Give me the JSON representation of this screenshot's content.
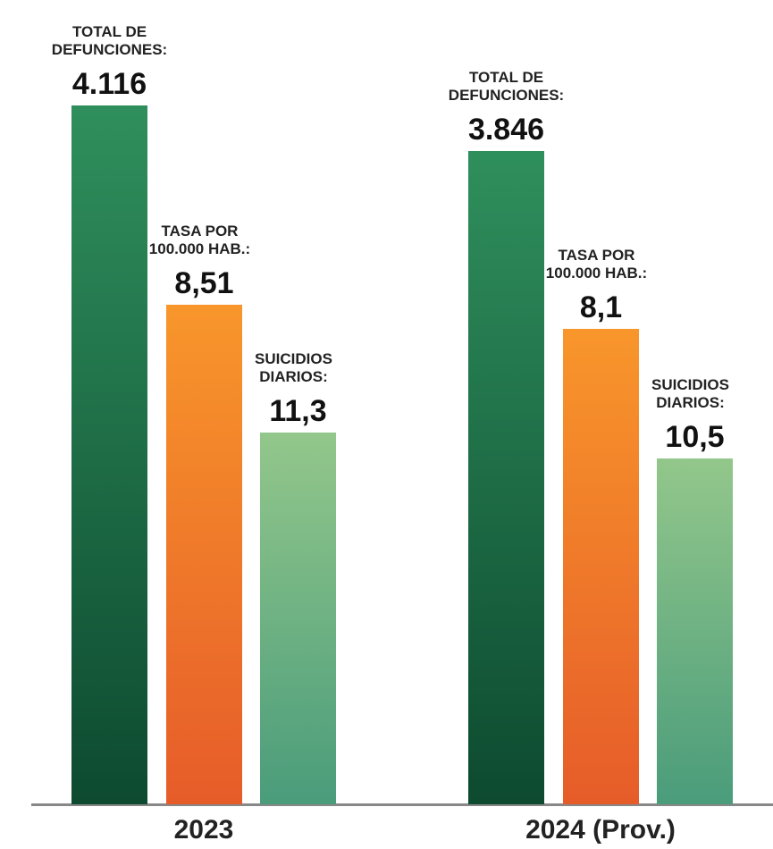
{
  "chart_data": {
    "type": "bar",
    "categories": [
      "2023",
      "2024 (Prov.)"
    ],
    "series": [
      {
        "name": "TOTAL DE DEFUNCIONES:",
        "color": "#1f7a4c",
        "values": [
          4116,
          3846
        ],
        "value_labels": [
          "4.116",
          "3.846"
        ]
      },
      {
        "name": "TASA POR 100.000 HAB.:",
        "color": "#f28a2a",
        "values": [
          8.51,
          8.1
        ],
        "value_labels": [
          "8,51",
          "8,1"
        ]
      },
      {
        "name": "SUICIDIOS DIARIOS:",
        "color": "#7db883",
        "values": [
          11.3,
          10.5
        ],
        "value_labels": [
          "11,3",
          "10,5"
        ]
      }
    ]
  }
}
